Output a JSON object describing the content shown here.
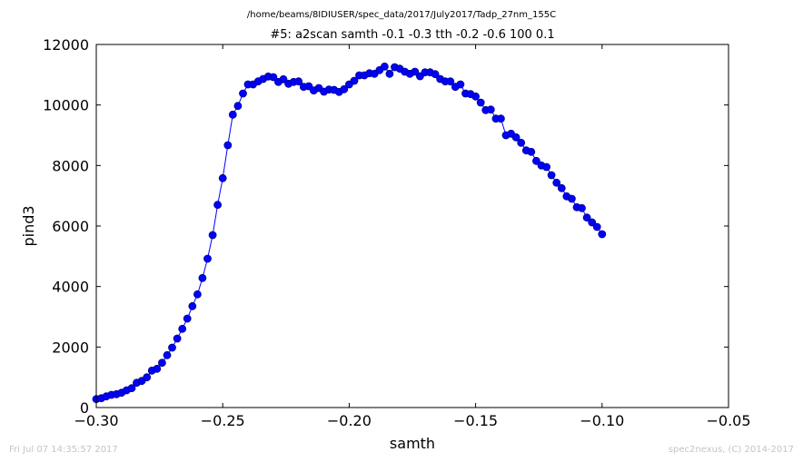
{
  "suptitle": "/home/beams/8IDIUSER/spec_data/2017/July2017/Tadp_27nm_155C",
  "footer": {
    "left": "Fri Jul 07 14:35:57 2017",
    "right": "spec2nexus, (C) 2014-2017"
  },
  "colors": {
    "line": "#0000ff",
    "marker_face": "#0000ff",
    "marker_edge": "#00008b",
    "axes": "#000000",
    "footer": "#c4c4c4"
  },
  "chart_data": {
    "type": "line",
    "title": "#5: a2scan  samth -0.1 -0.3  tth -0.2 -0.6  100 0.1",
    "xlabel": "samth",
    "ylabel": "pind3",
    "xlim": [
      -0.3,
      -0.05
    ],
    "ylim": [
      0,
      12000
    ],
    "xticks": [
      -0.3,
      -0.25,
      -0.2,
      -0.15,
      -0.1,
      -0.05
    ],
    "xtick_labels": [
      "−0.30",
      "−0.25",
      "−0.20",
      "−0.15",
      "−0.10",
      "−0.05"
    ],
    "yticks": [
      0,
      2000,
      4000,
      6000,
      8000,
      10000,
      12000
    ],
    "ytick_labels": [
      "0",
      "2000",
      "4000",
      "6000",
      "8000",
      "10000",
      "12000"
    ],
    "grid": false,
    "series": [
      {
        "marker": "circle",
        "points": [
          [
            -0.3,
            280
          ],
          [
            -0.298,
            310
          ],
          [
            -0.296,
            370
          ],
          [
            -0.294,
            420
          ],
          [
            -0.292,
            440
          ],
          [
            -0.29,
            490
          ],
          [
            -0.288,
            570
          ],
          [
            -0.286,
            640
          ],
          [
            -0.284,
            820
          ],
          [
            -0.282,
            880
          ],
          [
            -0.28,
            1000
          ],
          [
            -0.278,
            1220
          ],
          [
            -0.276,
            1280
          ],
          [
            -0.274,
            1480
          ],
          [
            -0.272,
            1730
          ],
          [
            -0.27,
            1980
          ],
          [
            -0.268,
            2280
          ],
          [
            -0.266,
            2600
          ],
          [
            -0.264,
            2940
          ],
          [
            -0.262,
            3350
          ],
          [
            -0.26,
            3740
          ],
          [
            -0.258,
            4280
          ],
          [
            -0.256,
            4920
          ],
          [
            -0.254,
            5700
          ],
          [
            -0.252,
            6700
          ],
          [
            -0.25,
            7580
          ],
          [
            -0.248,
            8670
          ],
          [
            -0.246,
            9680
          ],
          [
            -0.244,
            9970
          ],
          [
            -0.242,
            10380
          ],
          [
            -0.24,
            10680
          ],
          [
            -0.238,
            10680
          ],
          [
            -0.236,
            10780
          ],
          [
            -0.234,
            10860
          ],
          [
            -0.232,
            10940
          ],
          [
            -0.23,
            10920
          ],
          [
            -0.228,
            10760
          ],
          [
            -0.226,
            10850
          ],
          [
            -0.224,
            10700
          ],
          [
            -0.222,
            10760
          ],
          [
            -0.22,
            10780
          ],
          [
            -0.218,
            10600
          ],
          [
            -0.216,
            10620
          ],
          [
            -0.214,
            10480
          ],
          [
            -0.212,
            10560
          ],
          [
            -0.21,
            10440
          ],
          [
            -0.208,
            10510
          ],
          [
            -0.206,
            10500
          ],
          [
            -0.204,
            10430
          ],
          [
            -0.202,
            10520
          ],
          [
            -0.2,
            10680
          ],
          [
            -0.198,
            10800
          ],
          [
            -0.196,
            10980
          ],
          [
            -0.194,
            10980
          ],
          [
            -0.192,
            11050
          ],
          [
            -0.19,
            11030
          ],
          [
            -0.188,
            11150
          ],
          [
            -0.186,
            11270
          ],
          [
            -0.184,
            11030
          ],
          [
            -0.182,
            11250
          ],
          [
            -0.18,
            11200
          ],
          [
            -0.178,
            11100
          ],
          [
            -0.176,
            11030
          ],
          [
            -0.174,
            11100
          ],
          [
            -0.172,
            10950
          ],
          [
            -0.17,
            11080
          ],
          [
            -0.168,
            11080
          ],
          [
            -0.166,
            11020
          ],
          [
            -0.164,
            10860
          ],
          [
            -0.162,
            10780
          ],
          [
            -0.16,
            10780
          ],
          [
            -0.158,
            10600
          ],
          [
            -0.156,
            10680
          ],
          [
            -0.154,
            10380
          ],
          [
            -0.152,
            10360
          ],
          [
            -0.15,
            10280
          ],
          [
            -0.148,
            10080
          ],
          [
            -0.146,
            9830
          ],
          [
            -0.144,
            9850
          ],
          [
            -0.142,
            9550
          ],
          [
            -0.14,
            9550
          ],
          [
            -0.138,
            9000
          ],
          [
            -0.136,
            9050
          ],
          [
            -0.134,
            8930
          ],
          [
            -0.132,
            8750
          ],
          [
            -0.13,
            8500
          ],
          [
            -0.128,
            8450
          ],
          [
            -0.126,
            8150
          ],
          [
            -0.124,
            8000
          ],
          [
            -0.122,
            7950
          ],
          [
            -0.12,
            7680
          ],
          [
            -0.118,
            7430
          ],
          [
            -0.116,
            7250
          ],
          [
            -0.114,
            6980
          ],
          [
            -0.112,
            6900
          ],
          [
            -0.11,
            6620
          ],
          [
            -0.108,
            6590
          ],
          [
            -0.106,
            6280
          ],
          [
            -0.104,
            6120
          ],
          [
            -0.102,
            5970
          ],
          [
            -0.1,
            5730
          ]
        ]
      }
    ]
  }
}
